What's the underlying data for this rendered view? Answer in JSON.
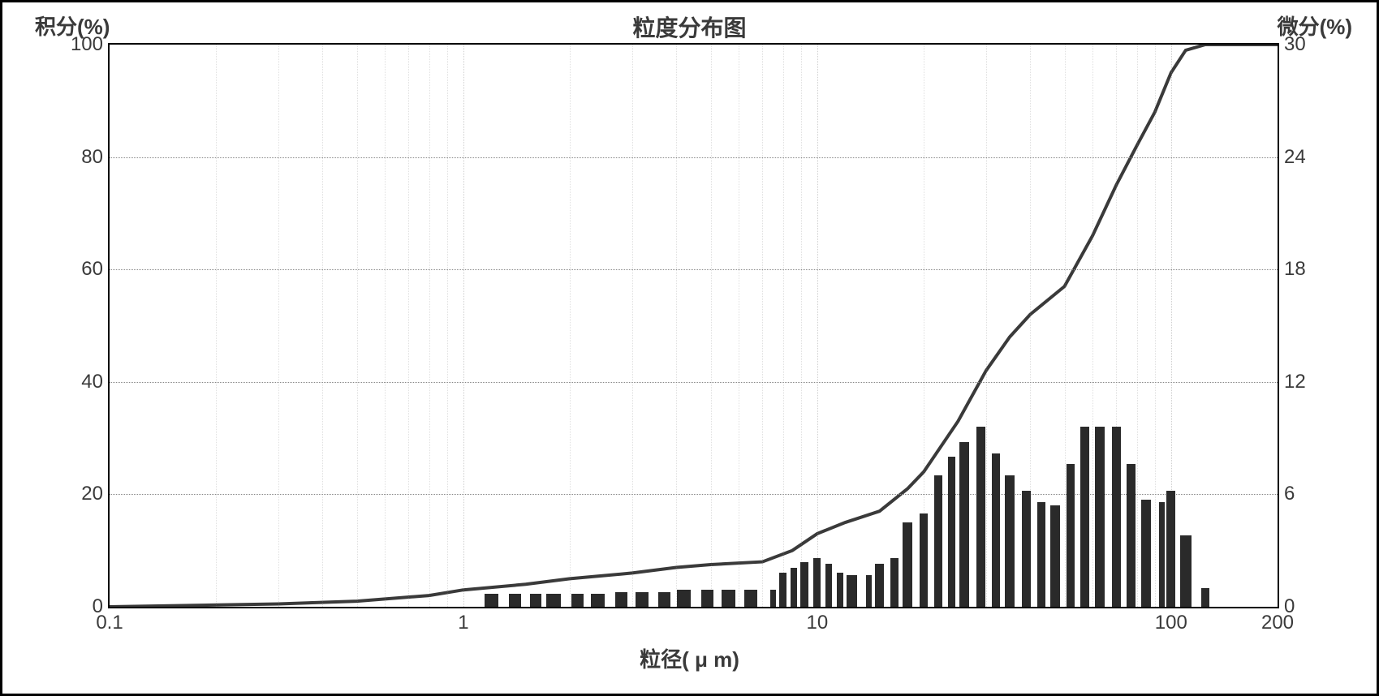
{
  "chart": {
    "type": "bar+line",
    "title": "粒度分布图",
    "ylabel_left": "积分(%)",
    "ylabel_right": "微分(%)",
    "xlabel": "粒径( μ m)",
    "xscale": "log",
    "xlim": [
      0.1,
      200
    ],
    "ylim_left": [
      0,
      100
    ],
    "ylim_right": [
      0,
      30
    ],
    "yticks_left": [
      0,
      20,
      40,
      60,
      80,
      100
    ],
    "yticks_right": [
      0,
      6,
      12,
      18,
      24,
      30
    ],
    "xticks": [
      0.1,
      1,
      10,
      100,
      200
    ],
    "xtick_labels": [
      "0.1",
      "1",
      "10",
      "100",
      "200"
    ],
    "bar_color": "#2a2a2a",
    "line_color": "#3a3a3a",
    "line_width": 2,
    "grid_color": "#888888",
    "background_color": "#ffffff",
    "border_color": "#000000",
    "title_fontsize": 28,
    "label_fontsize": 26,
    "tick_fontsize": 24,
    "bars": {
      "x": [
        1.2,
        1.4,
        1.6,
        1.8,
        2.1,
        2.4,
        2.8,
        3.2,
        3.7,
        4.2,
        4.9,
        5.6,
        6.5,
        7.5,
        8.0,
        8.6,
        9.2,
        10,
        10.8,
        11.6,
        12.5,
        14,
        15,
        16.5,
        18,
        20,
        22,
        24,
        26,
        29,
        32,
        35,
        39,
        43,
        47,
        52,
        57,
        63,
        70,
        77,
        85,
        94,
        100,
        110,
        125
      ],
      "y_diff": [
        0.7,
        0.7,
        0.7,
        0.7,
        0.7,
        0.7,
        0.8,
        0.8,
        0.8,
        0.9,
        0.9,
        0.9,
        0.9,
        0.9,
        1.8,
        2.1,
        2.4,
        2.6,
        2.3,
        1.8,
        1.7,
        1.7,
        2.3,
        2.6,
        4.5,
        5.0,
        7.0,
        8.0,
        8.8,
        9.6,
        8.2,
        7.0,
        6.2,
        5.6,
        5.4,
        7.6,
        9.6,
        9.6,
        9.6,
        7.6,
        5.7,
        5.6,
        6.2,
        3.8,
        1.0
      ],
      "bar_width_frac": 0.6
    },
    "cumulative": {
      "x": [
        0.1,
        0.3,
        0.5,
        0.8,
        1,
        1.5,
        2,
        3,
        4,
        5,
        7,
        8.5,
        10,
        12,
        15,
        18,
        20,
        25,
        30,
        35,
        40,
        50,
        60,
        70,
        80,
        90,
        100,
        110,
        125,
        150,
        200
      ],
      "y": [
        0,
        0.5,
        1,
        2,
        3,
        4,
        5,
        6,
        7,
        7.5,
        8,
        10,
        13,
        15,
        17,
        21,
        24,
        33,
        42,
        48,
        52,
        57,
        66,
        75,
        82,
        88,
        95,
        99,
        100,
        100,
        100
      ]
    }
  }
}
